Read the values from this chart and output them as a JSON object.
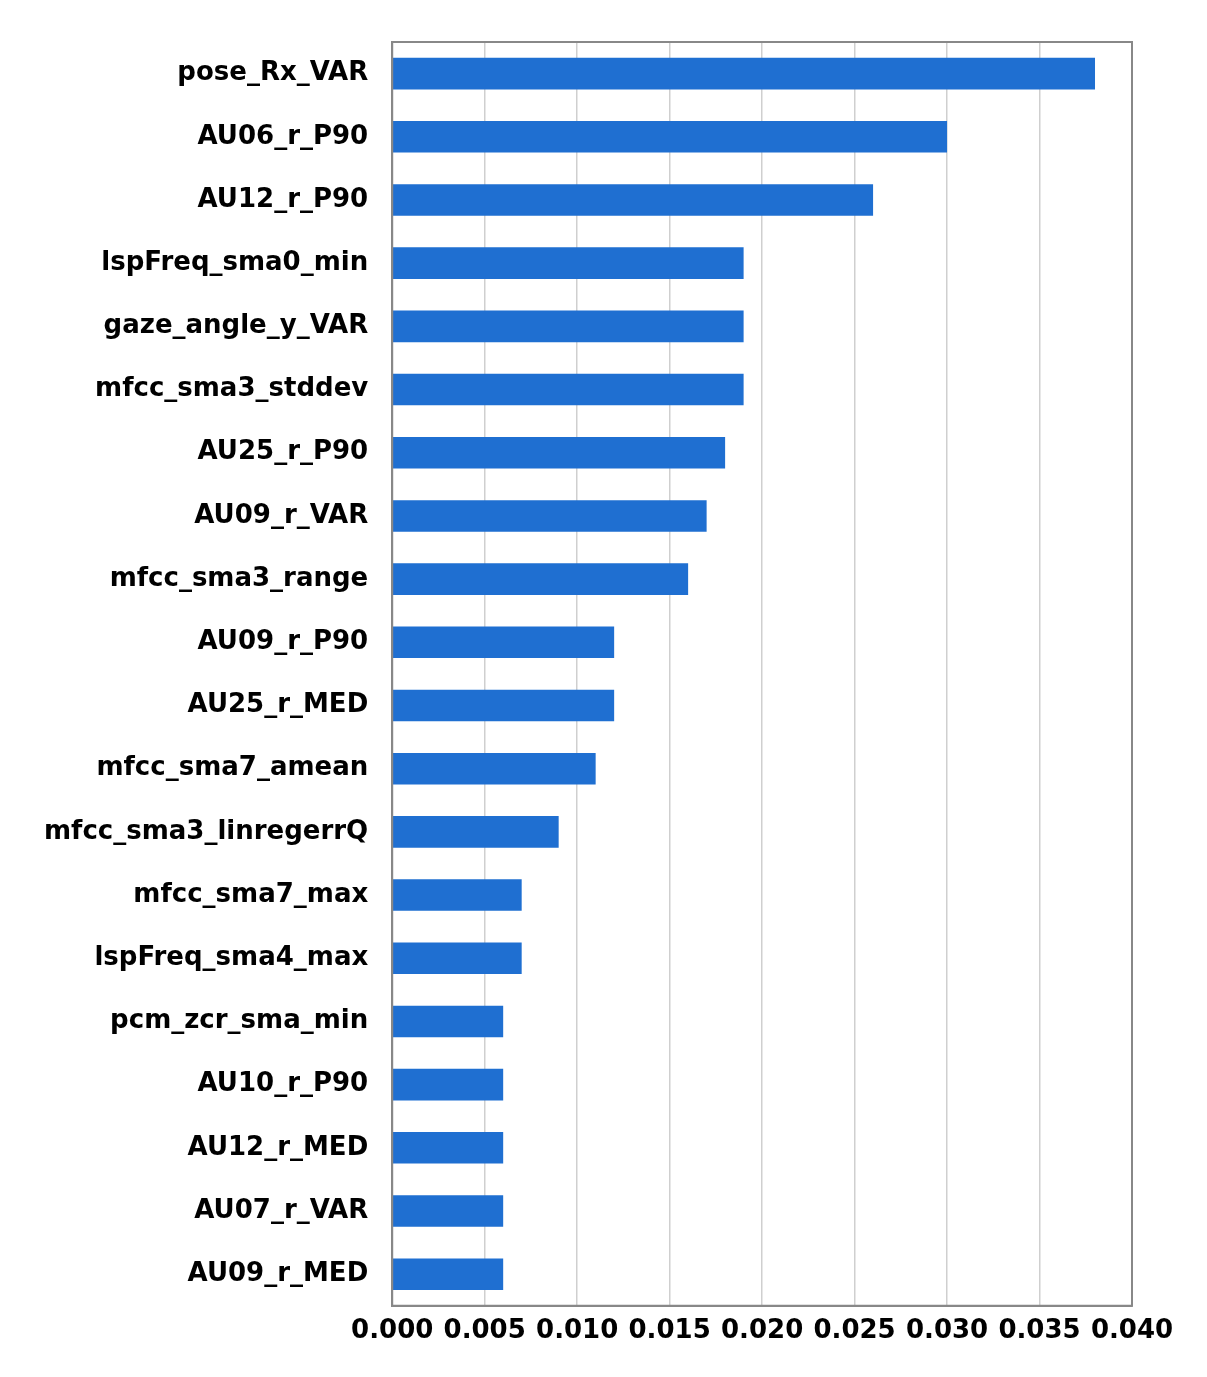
{
  "chart_data": {
    "type": "bar",
    "orientation": "horizontal",
    "categories": [
      "pose_Rx_VAR",
      "AU06_r_P90",
      "AU12_r_P90",
      "lspFreq_sma0_min",
      "gaze_angle_y_VAR",
      "mfcc_sma3_stddev",
      "AU25_r_P90",
      "AU09_r_VAR",
      "mfcc_sma3_range",
      "AU09_r_P90",
      "AU25_r_MED",
      "mfcc_sma7_amean",
      "mfcc_sma3_linregerrQ",
      "mfcc_sma7_max",
      "lspFreq_sma4_max",
      "pcm_zcr_sma_min",
      "AU10_r_P90",
      "AU12_r_MED",
      "AU07_r_VAR",
      "AU09_r_MED"
    ],
    "values": [
      0.038,
      0.03,
      0.026,
      0.019,
      0.019,
      0.019,
      0.018,
      0.017,
      0.016,
      0.012,
      0.012,
      0.011,
      0.009,
      0.007,
      0.007,
      0.006,
      0.006,
      0.006,
      0.006,
      0.006
    ],
    "color": "#1f6fd1",
    "xlim": [
      0,
      0.04
    ],
    "xticks": [
      {
        "value": 0,
        "label": "0.000"
      },
      {
        "value": 0.005,
        "label": "0.005"
      },
      {
        "value": 0.01,
        "label": "0.010"
      },
      {
        "value": 0.015,
        "label": "0.015"
      },
      {
        "value": 0.02,
        "label": "0.020"
      },
      {
        "value": 0.025,
        "label": "0.025"
      },
      {
        "value": 0.03,
        "label": "0.030"
      },
      {
        "value": 0.035,
        "label": "0.035"
      },
      {
        "value": 0.04,
        "label": "0.040"
      }
    ],
    "grid": "x",
    "legend": false
  }
}
